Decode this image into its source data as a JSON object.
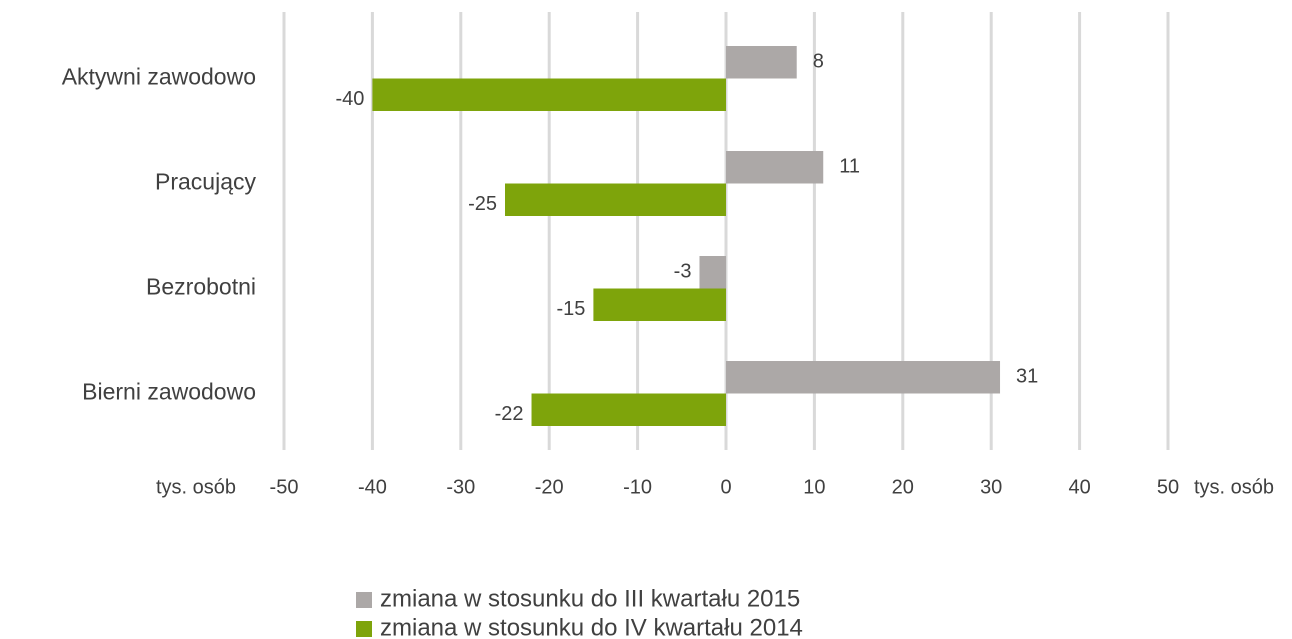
{
  "chart_data": {
    "type": "bar",
    "orientation": "horizontal",
    "categories": [
      "Aktywni zawodowo",
      "Pracujący",
      "Bezrobotni",
      "Bierni zawodowo"
    ],
    "series": [
      {
        "name": "zmiana w stosunku do III kwartału 2015",
        "color": "#aca8a7",
        "values": [
          8,
          11,
          -3,
          31
        ]
      },
      {
        "name": "zmiana w stosunku do IV kwartału 2014",
        "color": "#7ea40b",
        "values": [
          -40,
          -25,
          -15,
          -22
        ]
      }
    ],
    "xlabel": "tys. osób",
    "xlim": [
      -50,
      50
    ],
    "xticks": [
      -50,
      -40,
      -30,
      -20,
      -10,
      0,
      10,
      20,
      30,
      40,
      50
    ],
    "grid": true,
    "legend": "bottom"
  }
}
